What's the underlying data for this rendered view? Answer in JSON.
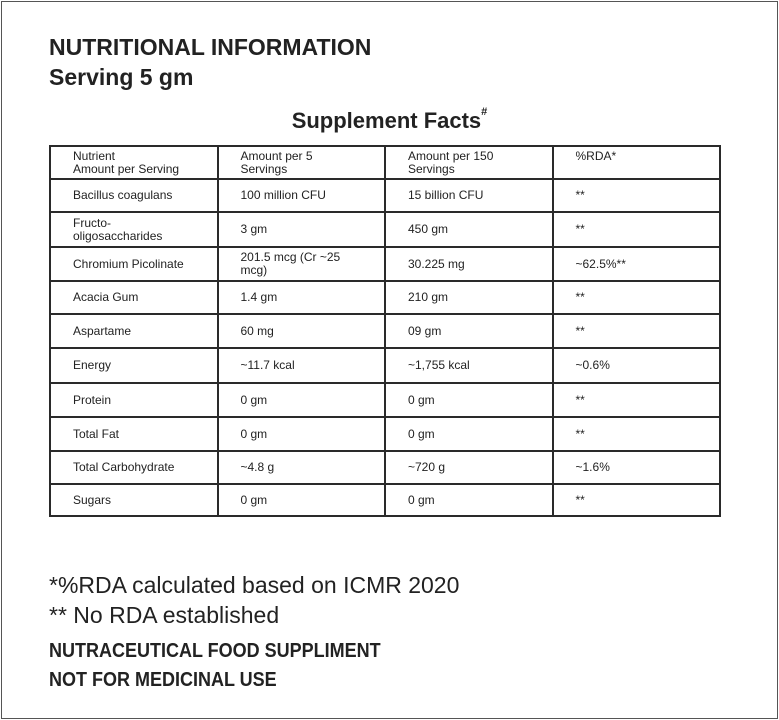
{
  "header": {
    "title": "NUTRITIONAL INFORMATION",
    "serving": "Serving  5 gm"
  },
  "table": {
    "title": "Supplement Facts",
    "title_mark": "#",
    "columns": [
      "Nutrient\nAmount per Serving",
      "Amount per 5\nServings",
      "Amount per 150\nServings",
      "%RDA*"
    ],
    "rows": [
      [
        "Bacillus coagulans",
        "100 million CFU",
        "15 billion CFU",
        "**"
      ],
      [
        "Fructo-\noligosaccharides",
        "3 gm",
        "450 gm",
        "**"
      ],
      [
        "Chromium Picolinate",
        "201.5 mcg (Cr ~25\nmcg)",
        "30.225 mg",
        "~62.5%**"
      ],
      [
        "Acacia Gum",
        "1.4 gm",
        "210 gm",
        "**"
      ],
      [
        "Aspartame",
        "60 mg",
        "09 gm",
        "**"
      ],
      [
        "Energy",
        "~11.7 kcal",
        "~1,755 kcal",
        "~0.6%"
      ],
      [
        "Protein",
        "0 gm",
        "0 gm",
        "**"
      ],
      [
        "Total Fat",
        "0 gm",
        "0 gm",
        "**"
      ],
      [
        "Total Carbohydrate",
        "~4.8 g",
        "~720 g",
        "~1.6%"
      ],
      [
        "Sugars",
        "0 gm",
        "0 gm",
        "**"
      ]
    ]
  },
  "footer": {
    "note1": "*%RDA calculated based on ICMR 2020",
    "note2": "** No RDA established",
    "line1": "NUTRACEUTICAL FOOD SUPPLIMENT",
    "line2": "NOT FOR MEDICINAL USE"
  }
}
